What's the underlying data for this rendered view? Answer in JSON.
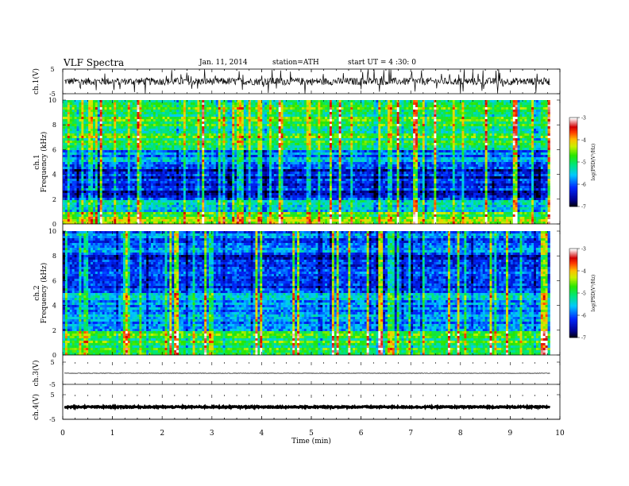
{
  "header": {
    "title": "VLF  Spectra",
    "date": "Jan.  11,  2014",
    "station": "station=ATH",
    "start": "start  UT  =   4  :30: 0"
  },
  "chart_data": [
    {
      "type": "line",
      "panel": "ch1",
      "ylabel": "ch.1(V)",
      "ylim": [
        -5,
        5
      ],
      "yticks": [
        "5",
        "-5"
      ],
      "baseline": 0.0,
      "noise_amplitude": 1.5,
      "spike_amplitude": 5,
      "color": "#000000"
    },
    {
      "type": "heatmap",
      "panel": "spec1",
      "ylabel_top": "ch.1",
      "ylabel": "Frequency  (kHz)",
      "xlim": [
        0,
        10
      ],
      "ylim": [
        0,
        10
      ],
      "yticks": [
        "0",
        "2",
        "4",
        "6",
        "8",
        "10"
      ],
      "x_data_end": 9.8,
      "colorbar": {
        "label": "log(PSD(V²/Hz)",
        "range": [
          -7,
          -3
        ],
        "ticks": [
          "-3",
          "-4",
          "-5",
          "-6",
          "-7"
        ]
      },
      "band_levels_by_khz": [
        {
          "from": 0,
          "to": 1,
          "level": -4.6
        },
        {
          "from": 1,
          "to": 2,
          "level": -5.5
        },
        {
          "from": 2,
          "to": 4.5,
          "level": -6.3
        },
        {
          "from": 4.5,
          "to": 6,
          "level": -5.8
        },
        {
          "from": 6,
          "to": 10,
          "level": -4.9
        }
      ]
    },
    {
      "type": "heatmap",
      "panel": "spec2",
      "ylabel_top": "ch.2",
      "ylabel": "Frequency  (kHz)",
      "xlim": [
        0,
        10
      ],
      "ylim": [
        0,
        10
      ],
      "yticks": [
        "0",
        "2",
        "4",
        "6",
        "8",
        "10"
      ],
      "x_data_end": 9.8,
      "colorbar": {
        "label": "log(PSD(V²/Hz)",
        "range": [
          -7,
          -3
        ],
        "ticks": [
          "-3",
          "-4",
          "-5",
          "-6",
          "-7"
        ]
      },
      "band_levels_by_khz": [
        {
          "from": 0,
          "to": 2,
          "level": -4.9
        },
        {
          "from": 2,
          "to": 5,
          "level": -5.6
        },
        {
          "from": 5,
          "to": 8,
          "level": -6.2
        },
        {
          "from": 8,
          "to": 10,
          "level": -5.9
        }
      ]
    },
    {
      "type": "line",
      "panel": "ch3",
      "ylabel": "ch.3(V)",
      "ylim": [
        -5,
        5
      ],
      "yticks": [
        "5",
        "-5"
      ],
      "baseline": 0.0,
      "noise_amplitude": 0.08,
      "color": "#000000"
    },
    {
      "type": "line",
      "panel": "ch4",
      "ylabel": "ch.4(V)",
      "ylim": [
        -5,
        5
      ],
      "yticks": [
        "5",
        "-5"
      ],
      "baseline": 0.0,
      "noise_amplitude": 0.3,
      "color": "#000000"
    }
  ],
  "xaxis": {
    "label": "Time  (min)",
    "range": [
      0,
      10
    ],
    "ticks": [
      "0",
      "1",
      "2",
      "3",
      "4",
      "5",
      "6",
      "7",
      "8",
      "9",
      "10"
    ]
  }
}
